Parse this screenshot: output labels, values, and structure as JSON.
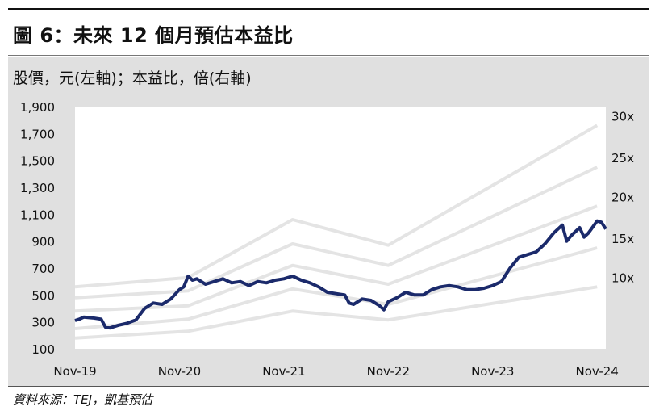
{
  "title": "圖 6：未來 12 個月預估本益比",
  "subtitle": "股價，元(左軸)；本益比，倍(右軸)",
  "source": "資料來源：TEJ，凱基預估",
  "colors": {
    "price": "#1b2a6b",
    "band": "#ffffff",
    "plot_bg": "#ffffff",
    "panel_bg": "#e0e0e0"
  },
  "chart_data": {
    "type": "line",
    "y_left": {
      "ticks": [
        100,
        300,
        500,
        700,
        900,
        "1,100",
        "1,300",
        "1,500",
        "1,700",
        "1,900"
      ],
      "range": [
        100,
        1900
      ]
    },
    "x_ticks": [
      "Nov-19",
      "Nov-20",
      "Nov-21",
      "Nov-22",
      "Nov-23",
      "Nov-24"
    ],
    "x_tick_values": [
      0,
      12,
      24,
      36,
      48,
      60
    ],
    "band_labels": [
      "10x",
      "15x",
      "20x",
      "25x",
      "30x"
    ],
    "grid": false,
    "series": [
      {
        "values": [
          [
            0,
            310
          ],
          [
            0.5,
            320
          ],
          [
            1,
            335
          ],
          [
            2,
            330
          ],
          [
            3,
            320
          ],
          [
            3.5,
            260
          ],
          [
            4,
            255
          ],
          [
            5,
            275
          ],
          [
            6,
            290
          ],
          [
            7,
            315
          ],
          [
            8,
            400
          ],
          [
            9,
            440
          ],
          [
            10,
            430
          ],
          [
            11,
            470
          ],
          [
            12,
            540
          ],
          [
            12.5,
            560
          ],
          [
            13,
            640
          ],
          [
            13.5,
            610
          ],
          [
            14,
            620
          ],
          [
            15,
            580
          ],
          [
            16,
            600
          ],
          [
            17,
            620
          ],
          [
            18,
            590
          ],
          [
            19,
            600
          ],
          [
            20,
            570
          ],
          [
            21,
            600
          ],
          [
            22,
            590
          ],
          [
            23,
            610
          ],
          [
            24,
            620
          ],
          [
            25,
            640
          ],
          [
            26,
            610
          ],
          [
            27,
            590
          ],
          [
            28,
            560
          ],
          [
            29,
            520
          ],
          [
            30,
            510
          ],
          [
            31,
            500
          ],
          [
            31.5,
            440
          ],
          [
            32,
            430
          ],
          [
            33,
            470
          ],
          [
            34,
            460
          ],
          [
            35,
            420
          ],
          [
            35.5,
            390
          ],
          [
            36,
            450
          ],
          [
            37,
            480
          ],
          [
            38,
            520
          ],
          [
            39,
            500
          ],
          [
            40,
            500
          ],
          [
            41,
            540
          ],
          [
            42,
            560
          ],
          [
            43,
            570
          ],
          [
            44,
            560
          ],
          [
            45,
            540
          ],
          [
            46,
            540
          ],
          [
            47,
            550
          ],
          [
            48,
            570
          ],
          [
            49,
            600
          ],
          [
            50,
            700
          ],
          [
            51,
            780
          ],
          [
            52,
            800
          ],
          [
            53,
            820
          ],
          [
            54,
            880
          ],
          [
            55,
            960
          ],
          [
            56,
            1020
          ],
          [
            56.5,
            900
          ],
          [
            57,
            940
          ],
          [
            58,
            1000
          ],
          [
            58.5,
            930
          ],
          [
            59,
            960
          ],
          [
            60,
            1050
          ],
          [
            60.5,
            1040
          ],
          [
            61,
            990
          ]
        ]
      }
    ],
    "bands": [
      {
        "name": "10x",
        "values": [
          [
            0,
            180
          ],
          [
            13,
            230
          ],
          [
            25,
            380
          ],
          [
            36,
            315
          ],
          [
            60,
            560
          ]
        ]
      },
      {
        "name": "15x",
        "values": [
          [
            0,
            250
          ],
          [
            13,
            320
          ],
          [
            25,
            545
          ],
          [
            36,
            430
          ],
          [
            60,
            850
          ]
        ]
      },
      {
        "name": "20x",
        "values": [
          [
            0,
            380
          ],
          [
            13,
            420
          ],
          [
            25,
            720
          ],
          [
            36,
            580
          ],
          [
            60,
            1160
          ]
        ]
      },
      {
        "name": "25x",
        "values": [
          [
            0,
            480
          ],
          [
            13,
            530
          ],
          [
            25,
            880
          ],
          [
            36,
            720
          ],
          [
            60,
            1450
          ]
        ]
      },
      {
        "name": "30x",
        "values": [
          [
            0,
            560
          ],
          [
            13,
            630
          ],
          [
            25,
            1060
          ],
          [
            36,
            870
          ],
          [
            60,
            1760
          ]
        ]
      }
    ]
  }
}
